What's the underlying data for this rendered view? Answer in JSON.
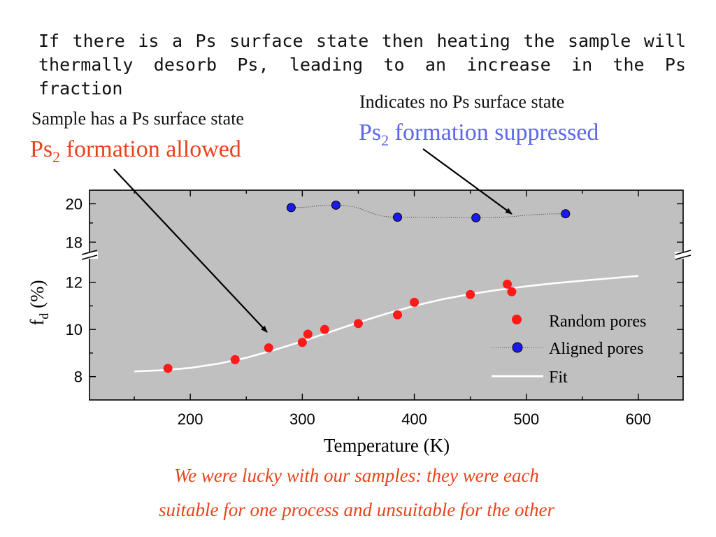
{
  "intro": {
    "line1": "If there is a Ps surface state then heating the sample will",
    "line2": "thermally desorb Ps, leading to an increase in the Ps fraction"
  },
  "annotations": {
    "left_note": "Sample has a Ps surface state",
    "left_main_pre": "Ps",
    "left_main_sub": "2",
    "left_main_post": " formation allowed",
    "right_note": "Indicates no Ps surface state",
    "right_main_pre": "Ps",
    "right_main_sub": "2",
    "right_main_post": " formation suppressed"
  },
  "footer": {
    "line1": "We were lucky with our samples: they were each",
    "line2": "suitable for one process and unsuitable for the other"
  },
  "colors": {
    "plot_bg": "#c0c0c0",
    "random": "#ff1a1a",
    "aligned": "#1a1aee",
    "fit": "#ffffff",
    "left_accent": "#e8431c",
    "right_accent": "#5b67ee"
  },
  "chart_data": {
    "type": "scatter",
    "xlabel": "Temperature (K)",
    "ylabel_main": "f",
    "ylabel_sub": "d",
    "ylabel_unit": " (%)",
    "xlim": [
      110,
      640
    ],
    "ylim_lower": [
      7.1,
      13.0
    ],
    "ylim_upper": [
      17.5,
      20.6
    ],
    "broken_y_axis": true,
    "x_ticks": [
      200,
      300,
      400,
      500,
      600
    ],
    "y_ticks_lower": [
      8,
      10,
      12
    ],
    "y_ticks_upper": [
      18,
      20
    ],
    "grid": false,
    "legend_position": "bottom-right",
    "series": [
      {
        "name": "Random pores",
        "marker": "filled-circle",
        "x": [
          180,
          240,
          270,
          300,
          305,
          320,
          350,
          385,
          400,
          450,
          483,
          487
        ],
        "y": [
          8.35,
          8.72,
          9.22,
          9.45,
          9.8,
          10.0,
          10.25,
          10.62,
          11.15,
          11.48,
          11.92,
          11.6
        ]
      },
      {
        "name": "Aligned pores",
        "marker": "circle-dotted-line",
        "x": [
          290,
          330,
          385,
          455,
          535
        ],
        "y": [
          19.8,
          19.93,
          19.3,
          19.27,
          19.48
        ]
      },
      {
        "name": "Fit",
        "marker": "line",
        "x": [
          150,
          175,
          200,
          225,
          250,
          275,
          300,
          325,
          350,
          375,
          400,
          425,
          450,
          475,
          500,
          525,
          550,
          575,
          600
        ],
        "y": [
          8.22,
          8.27,
          8.37,
          8.55,
          8.8,
          9.13,
          9.5,
          9.9,
          10.3,
          10.67,
          11.0,
          11.28,
          11.5,
          11.68,
          11.83,
          11.96,
          12.07,
          12.17,
          12.27
        ]
      }
    ]
  }
}
